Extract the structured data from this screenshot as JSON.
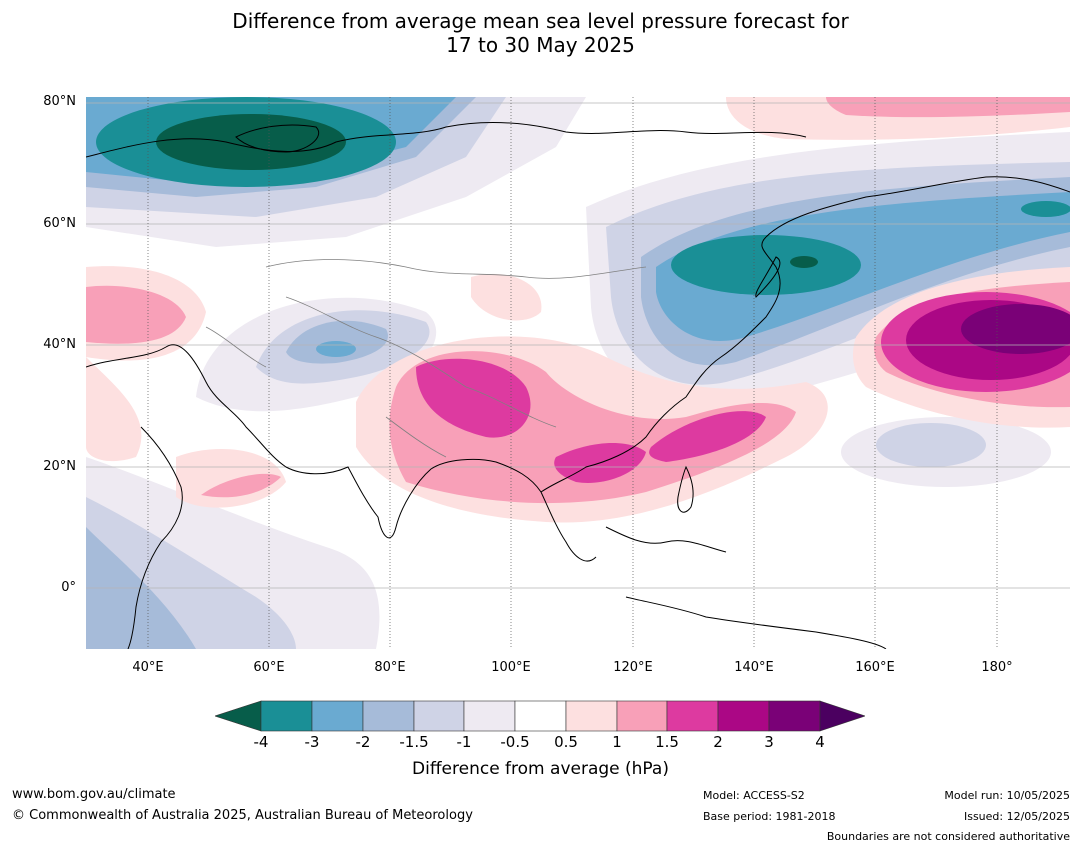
{
  "title_line1": "Difference from average mean sea level pressure forecast for",
  "title_line2": "17 to 30 May 2025",
  "lat_labels": [
    "80°N",
    "60°N",
    "40°N",
    "20°N",
    "0°"
  ],
  "lon_labels": [
    "40°E",
    "60°E",
    "80°E",
    "100°E",
    "120°E",
    "140°E",
    "160°E",
    "180°"
  ],
  "colorbar": {
    "ticks": [
      "-4",
      "-3",
      "-2",
      "-1.5",
      "-1",
      "-0.5",
      "0.5",
      "1",
      "1.5",
      "2",
      "3",
      "4"
    ],
    "colors": {
      "below_min": "#075d4a",
      "b1": "#1a8f96",
      "b2": "#6aaad1",
      "b3": "#a6bbd9",
      "b4": "#cfd3e6",
      "b5": "#eeeaf2",
      "b6": "#ffffff",
      "b7": "#fde0e0",
      "b8": "#f8a0b8",
      "b9": "#dd3aa0",
      "b10": "#ab0785",
      "b11": "#7a0177",
      "above_max": "#4b0060"
    },
    "label": "Difference from average (hPa)"
  },
  "footer": {
    "url": "www.bom.gov.au/climate",
    "copyright": "© Commonwealth of Australia 2025, Australian Bureau of Meteorology",
    "model": "Model: ACCESS-S2",
    "base_period": "Base period: 1981-2018",
    "model_run": "Model run: 10/05/2025",
    "issued": "Issued: 12/05/2025",
    "disclaimer": "Boundaries are not considered authoritative"
  }
}
